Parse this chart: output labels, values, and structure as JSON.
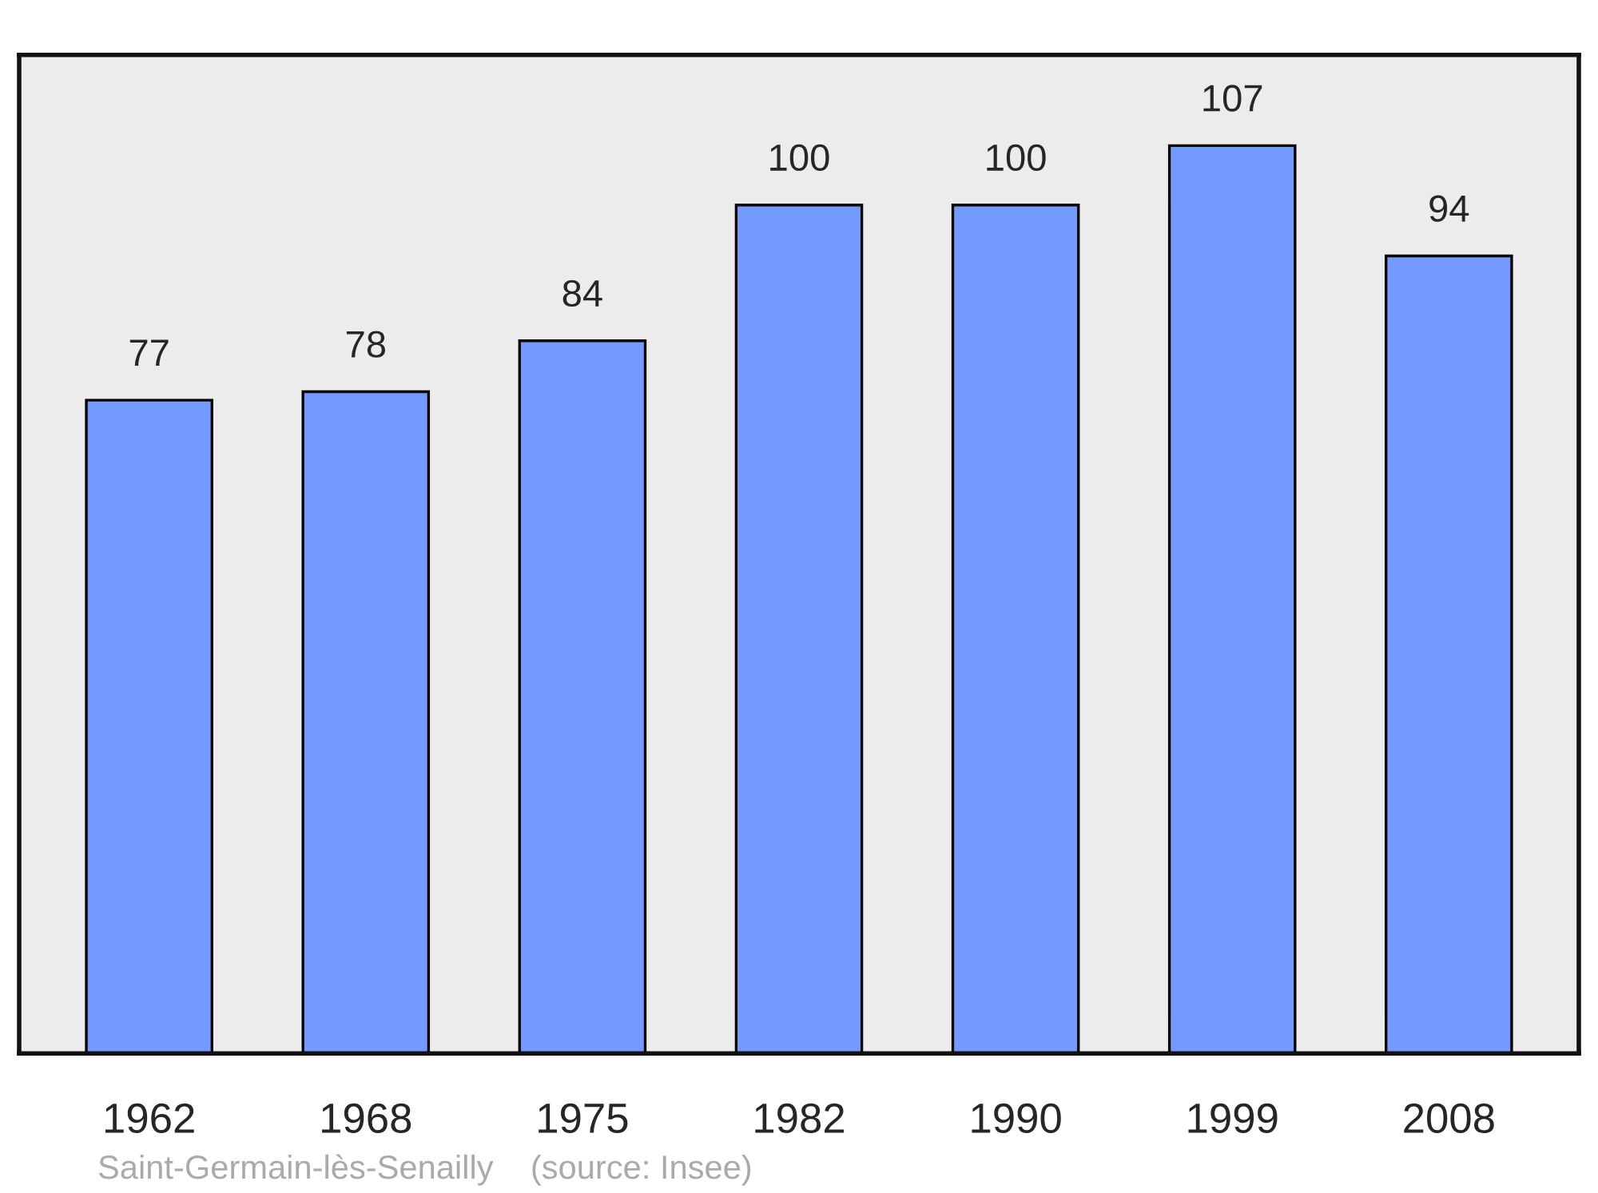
{
  "chart_data": {
    "type": "bar",
    "categories": [
      "1962",
      "1968",
      "1975",
      "1982",
      "1990",
      "1999",
      "2008"
    ],
    "values": [
      77,
      78,
      84,
      100,
      100,
      107,
      94
    ],
    "color": "#7499ff",
    "data_labels": true,
    "tick_labels": "x",
    "grid": false,
    "annotations": [
      "Saint-Germain-lès-Senailly    (source: Insee)"
    ]
  }
}
